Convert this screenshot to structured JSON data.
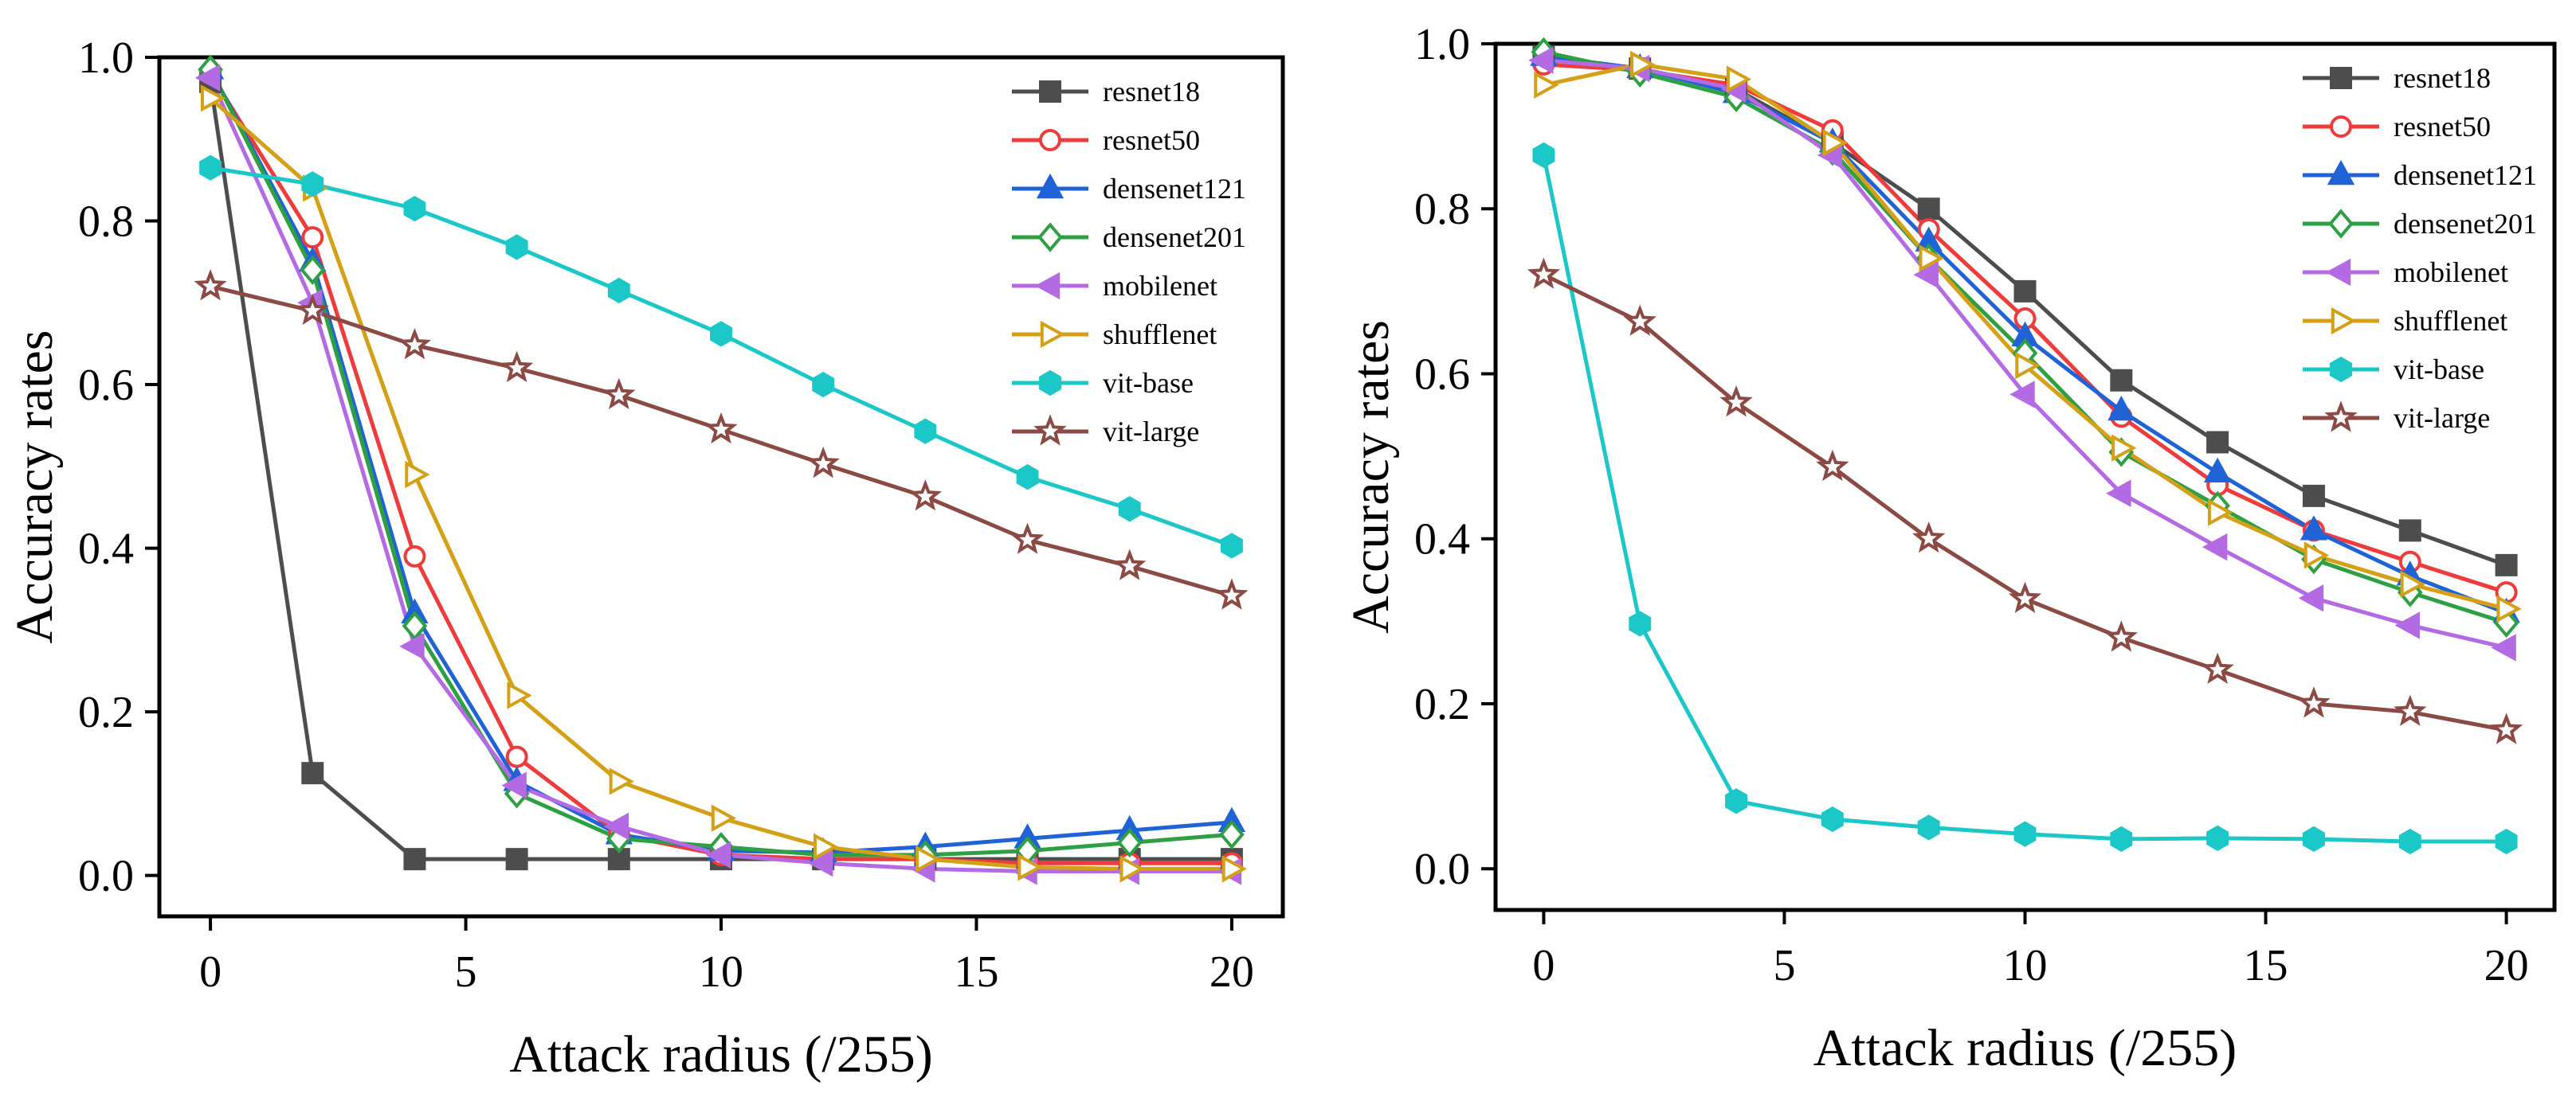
{
  "chart_data": [
    {
      "type": "line",
      "title": "",
      "xlabel": "Attack radius (/255)",
      "ylabel": "Accuracy rates",
      "xlim": [
        -1,
        21
      ],
      "ylim": [
        -0.05,
        1.0
      ],
      "xticks": [
        0,
        5,
        10,
        15,
        20
      ],
      "yticks": [
        0.0,
        0.2,
        0.4,
        0.6,
        0.8,
        1.0
      ],
      "xtick_labels": [
        "0",
        "5",
        "10",
        "15",
        "20"
      ],
      "ytick_labels": [
        "0.0",
        "0.2",
        "0.4",
        "0.6",
        "0.8",
        "1.0"
      ],
      "grid": false,
      "legend_position": "top-right",
      "x": [
        0,
        2,
        4,
        6,
        8,
        10,
        12,
        14,
        16,
        18,
        20
      ],
      "series": [
        {
          "name": "resnet18",
          "color": "#4d4d4d",
          "marker": "square",
          "filled": true,
          "values": [
            0.97,
            0.125,
            0.02,
            0.02,
            0.02,
            0.02,
            0.02,
            0.02,
            0.02,
            0.02,
            0.02
          ]
        },
        {
          "name": "resnet50",
          "color": "#ee3b3b",
          "marker": "circle",
          "filled": false,
          "values": [
            0.98,
            0.78,
            0.39,
            0.145,
            0.05,
            0.025,
            0.02,
            0.02,
            0.015,
            0.015,
            0.015
          ]
        },
        {
          "name": "densenet121",
          "color": "#1f63d6",
          "marker": "triangle-up",
          "filled": true,
          "values": [
            0.985,
            0.75,
            0.32,
            0.115,
            0.05,
            0.03,
            0.028,
            0.035,
            0.045,
            0.055,
            0.065
          ]
        },
        {
          "name": "densenet201",
          "color": "#2ea043",
          "marker": "diamond",
          "filled": false,
          "values": [
            0.985,
            0.74,
            0.305,
            0.1,
            0.045,
            0.035,
            0.025,
            0.025,
            0.03,
            0.04,
            0.05
          ]
        },
        {
          "name": "mobilenet",
          "color": "#b36ae2",
          "marker": "triangle-left",
          "filled": true,
          "values": [
            0.975,
            0.7,
            0.28,
            0.11,
            0.06,
            0.025,
            0.015,
            0.008,
            0.005,
            0.005,
            0.005
          ]
        },
        {
          "name": "shufflenet",
          "color": "#d4a017",
          "marker": "triangle-right",
          "filled": false,
          "values": [
            0.95,
            0.84,
            0.49,
            0.22,
            0.115,
            0.07,
            0.035,
            0.02,
            0.01,
            0.008,
            0.008
          ]
        },
        {
          "name": "vit-base",
          "color": "#1cc7c7",
          "marker": "hexagon",
          "filled": true,
          "values": [
            0.865,
            0.845,
            0.815,
            0.768,
            0.715,
            0.662,
            0.6,
            0.543,
            0.487,
            0.448,
            0.403
          ]
        },
        {
          "name": "vit-large",
          "color": "#8b4a44",
          "marker": "star",
          "filled": false,
          "values": [
            0.72,
            0.69,
            0.648,
            0.62,
            0.587,
            0.545,
            0.503,
            0.463,
            0.41,
            0.378,
            0.342
          ]
        }
      ]
    },
    {
      "type": "line",
      "title": "",
      "xlabel": "Attack radius (/255)",
      "ylabel": "Accuracy rates",
      "xlim": [
        -1,
        21
      ],
      "ylim": [
        -0.05,
        1.0
      ],
      "xticks": [
        0,
        5,
        10,
        15,
        20
      ],
      "yticks": [
        0.0,
        0.2,
        0.4,
        0.6,
        0.8,
        1.0
      ],
      "xtick_labels": [
        "0",
        "5",
        "10",
        "15",
        "20"
      ],
      "ytick_labels": [
        "0.0",
        "0.2",
        "0.4",
        "0.6",
        "0.8",
        "1.0"
      ],
      "grid": false,
      "legend_position": "top-right",
      "x": [
        0,
        2,
        4,
        6,
        8,
        10,
        12,
        14,
        16,
        18,
        20
      ],
      "series": [
        {
          "name": "resnet18",
          "color": "#4d4d4d",
          "marker": "square",
          "filled": true,
          "values": [
            0.985,
            0.97,
            0.945,
            0.88,
            0.8,
            0.7,
            0.592,
            0.517,
            0.452,
            0.41,
            0.368
          ]
        },
        {
          "name": "resnet50",
          "color": "#ee3b3b",
          "marker": "circle",
          "filled": false,
          "values": [
            0.975,
            0.968,
            0.95,
            0.895,
            0.775,
            0.667,
            0.548,
            0.465,
            0.41,
            0.372,
            0.335
          ]
        },
        {
          "name": "densenet121",
          "color": "#1f63d6",
          "marker": "triangle-up",
          "filled": true,
          "values": [
            0.985,
            0.97,
            0.94,
            0.88,
            0.76,
            0.645,
            0.555,
            0.48,
            0.41,
            0.355,
            0.31
          ]
        },
        {
          "name": "densenet201",
          "color": "#2ea043",
          "marker": "diamond",
          "filled": false,
          "values": [
            0.99,
            0.965,
            0.935,
            0.87,
            0.74,
            0.625,
            0.505,
            0.44,
            0.375,
            0.335,
            0.298
          ]
        },
        {
          "name": "mobilenet",
          "color": "#b36ae2",
          "marker": "triangle-left",
          "filled": true,
          "values": [
            0.98,
            0.97,
            0.945,
            0.865,
            0.72,
            0.575,
            0.455,
            0.39,
            0.328,
            0.295,
            0.268
          ]
        },
        {
          "name": "shufflenet",
          "color": "#d4a017",
          "marker": "triangle-right",
          "filled": false,
          "values": [
            0.95,
            0.975,
            0.957,
            0.88,
            0.74,
            0.61,
            0.51,
            0.432,
            0.38,
            0.345,
            0.315
          ]
        },
        {
          "name": "vit-base",
          "color": "#1cc7c7",
          "marker": "hexagon",
          "filled": true,
          "values": [
            0.865,
            0.297,
            0.082,
            0.06,
            0.05,
            0.042,
            0.036,
            0.037,
            0.036,
            0.033,
            0.033
          ]
        },
        {
          "name": "vit-large",
          "color": "#8b4a44",
          "marker": "star",
          "filled": false,
          "values": [
            0.72,
            0.663,
            0.565,
            0.487,
            0.4,
            0.327,
            0.28,
            0.241,
            0.2,
            0.19,
            0.168
          ]
        }
      ]
    }
  ]
}
